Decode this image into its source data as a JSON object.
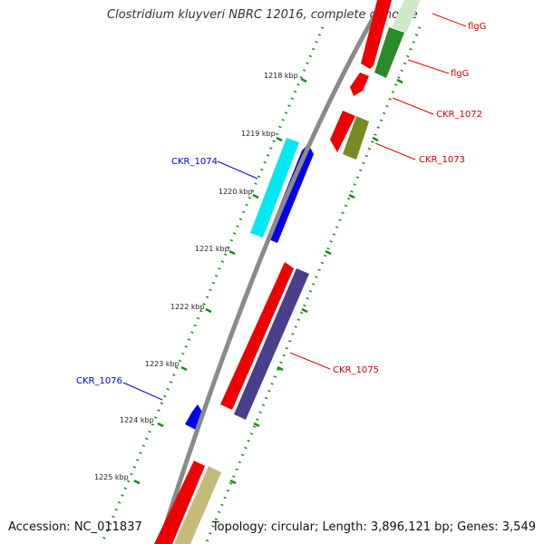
{
  "title": "Clostridium kluyveri NBRC 12016, complete genome",
  "accession": "Accession: NC_011837",
  "topology": "Topology: circular; Length: 3,896,121 bp; Genes: 3,549",
  "kbp_labels": [
    "1218 kbp",
    "1219 kbp",
    "1220 kbp",
    "1221 kbp",
    "1222 kbp",
    "1223 kbp",
    "1224 kbp",
    "1225 kbp"
  ],
  "genes": [
    {
      "label": "flgG",
      "label_color": "#cc0000"
    },
    {
      "label": "flgG",
      "label_color": "#cc0000"
    },
    {
      "label": "CKR_1072",
      "label_color": "#cc0000"
    },
    {
      "label": "CKR_1073",
      "label_color": "#cc0000"
    },
    {
      "label": "CKR_1074",
      "label_color": "#0000cc"
    },
    {
      "label": "CKR_1075",
      "label_color": "#cc0000"
    },
    {
      "label": "CKR_1076",
      "label_color": "#0000cc"
    }
  ],
  "colors": {
    "backbone": "#8a8a8a",
    "ticks": "#1a8a1a",
    "cds": "#ee0000",
    "gene_green": "#2a8a2a",
    "gene_olive": "#7a8a22",
    "gene_cyan": "#00e8f0",
    "gene_blue": "#0000ee",
    "gene_indigo": "#4a3f8a",
    "gene_khaki": "#c4bb7a"
  }
}
